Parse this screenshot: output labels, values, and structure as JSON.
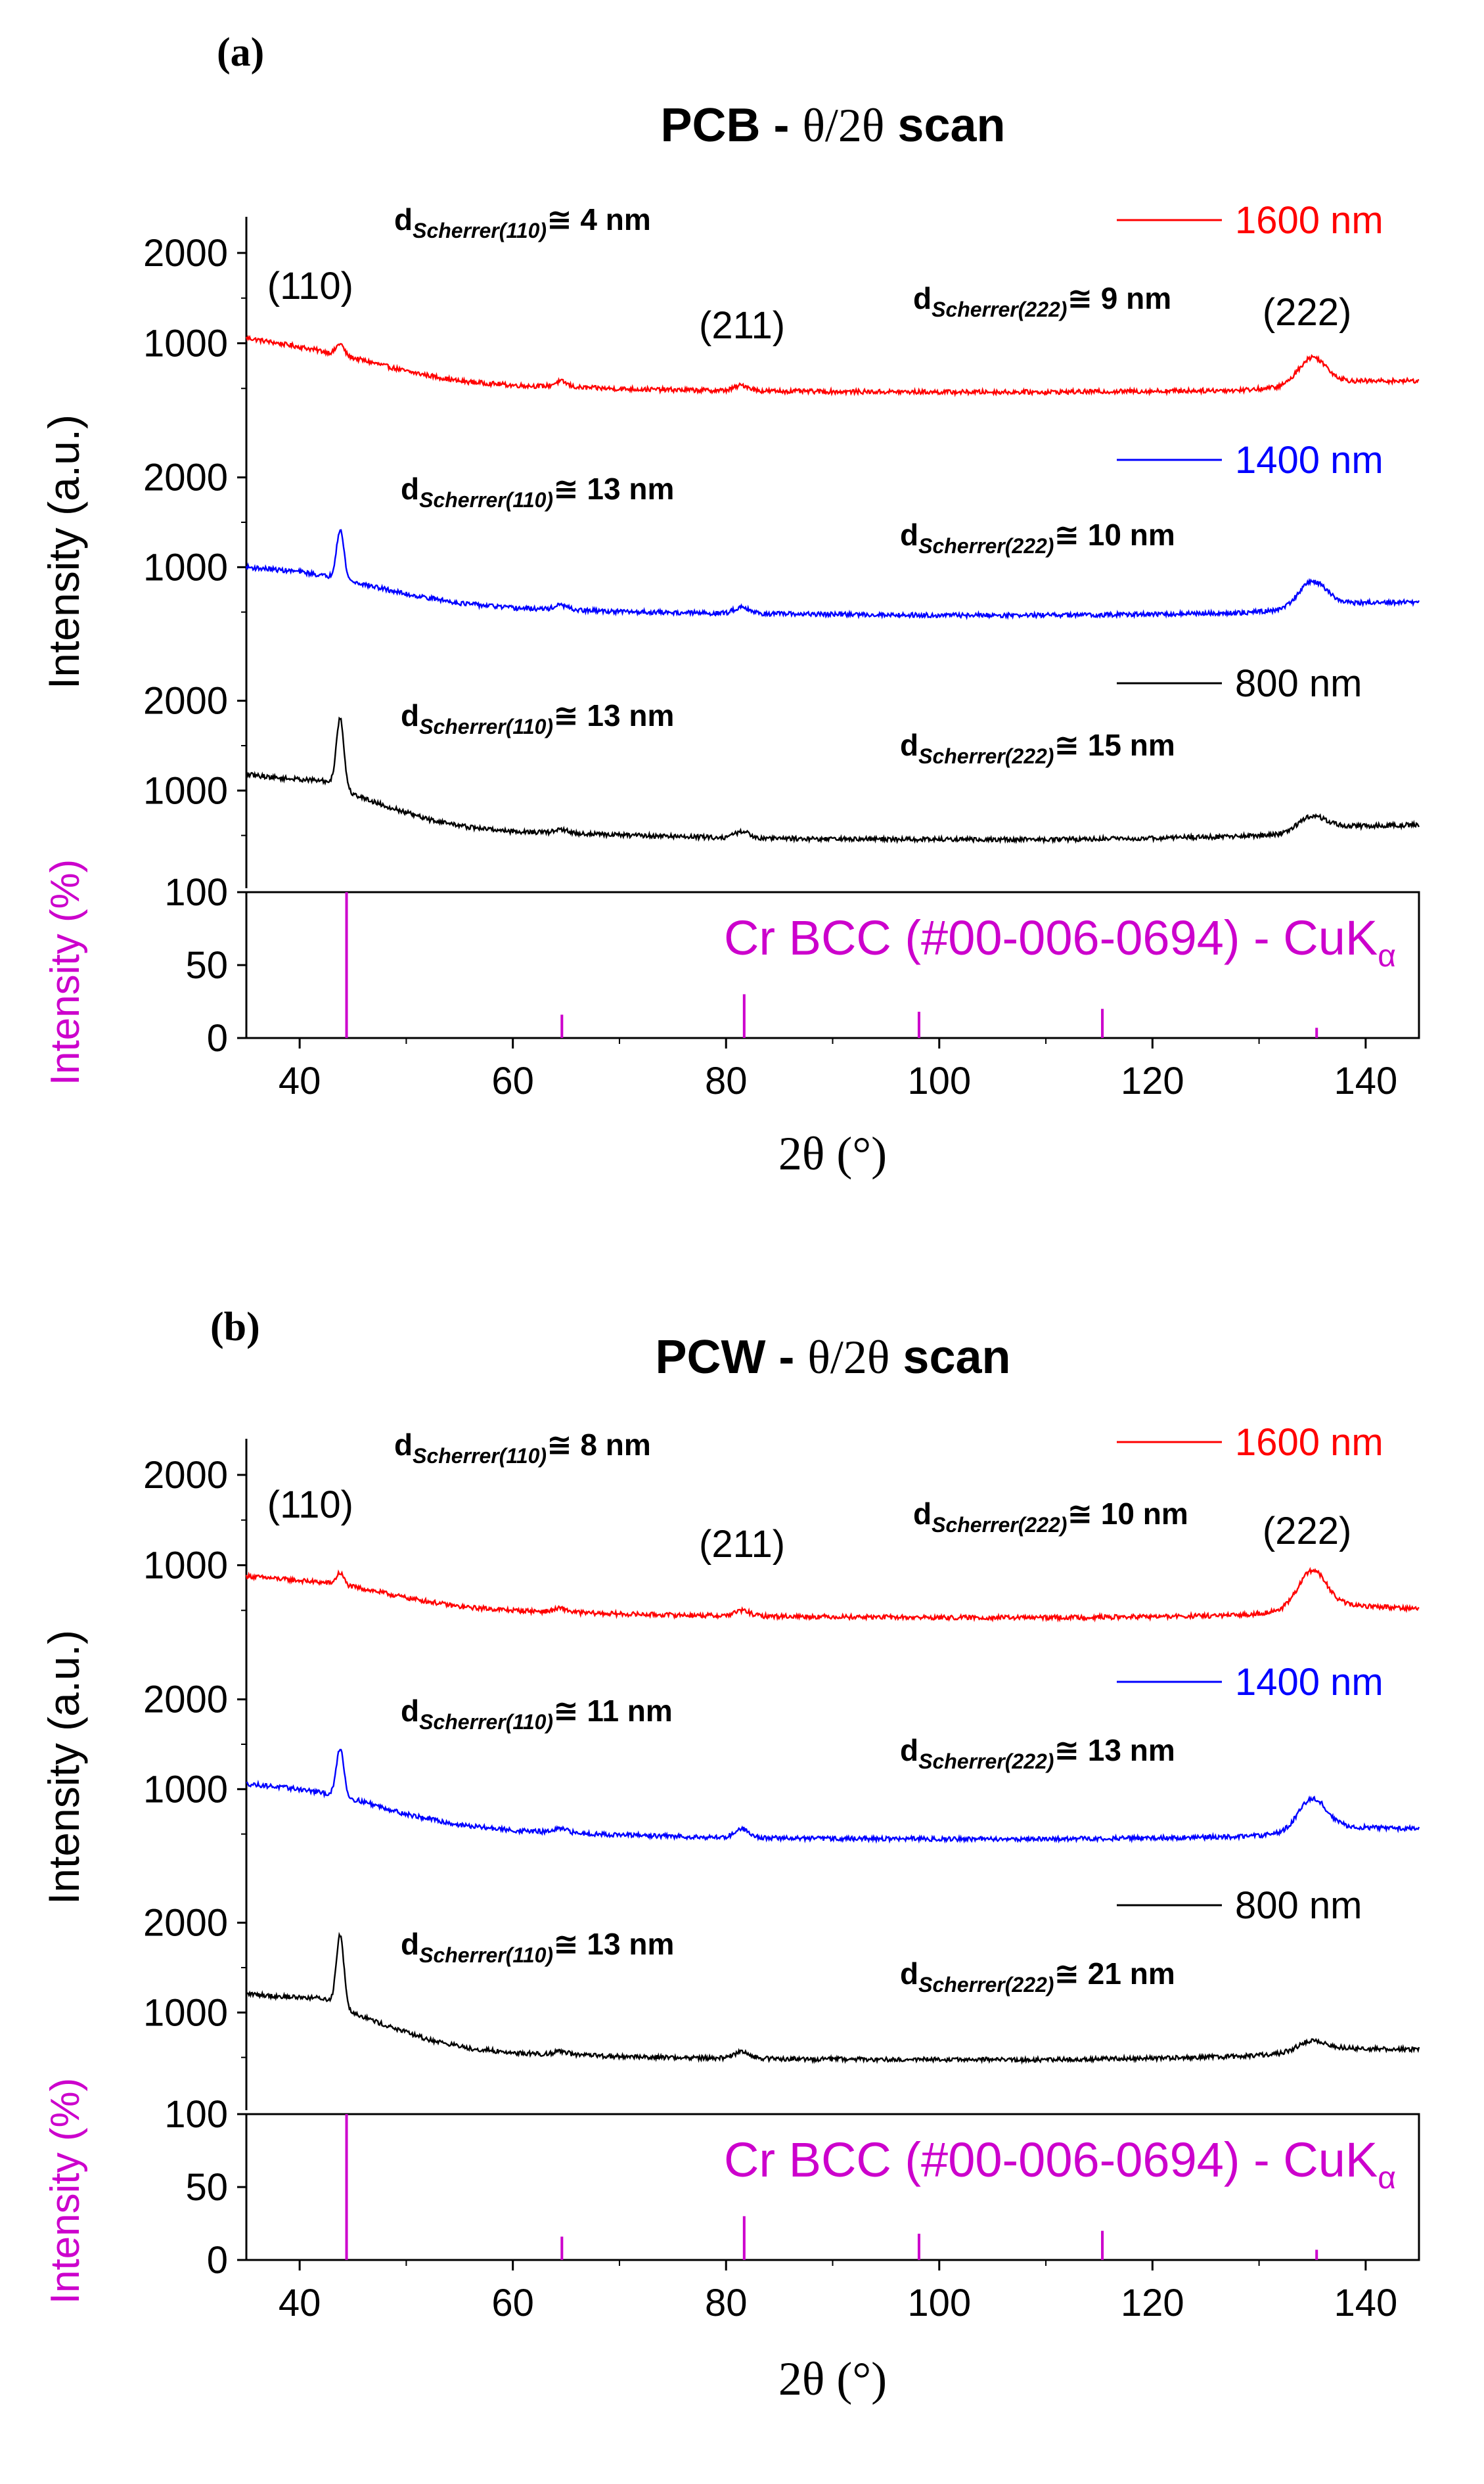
{
  "chart_data": [
    {
      "type": "line",
      "panel_label": "(a)",
      "title_prefix": "PCB - ",
      "title_suffix": " scan",
      "title_theta": "θ/2θ",
      "ylabel_main": "Intensity (a.u.)",
      "ylabel_ref": "Intensity (%)",
      "xlabel": "2θ (°)",
      "xlim": [
        35,
        145
      ],
      "xticks": [
        "40",
        "60",
        "80",
        "100",
        "120",
        "140"
      ],
      "ylim_main": [
        0,
        2400
      ],
      "yticks_main": [
        "2000",
        "1000"
      ],
      "ylim_ref": [
        0,
        100
      ],
      "yticks_ref": [
        "100",
        "50",
        "0"
      ],
      "series": [
        {
          "name": "1600 nm",
          "color": "#ff0000",
          "baseline": [
            [
              35,
              1060
            ],
            [
              40,
              960
            ],
            [
              44,
              870
            ],
            [
              50,
              690
            ],
            [
              55,
              580
            ],
            [
              60,
              535
            ],
            [
              70,
              495
            ],
            [
              80,
              475
            ],
            [
              90,
              465
            ],
            [
              100,
              460
            ],
            [
              110,
              460
            ],
            [
              120,
              470
            ],
            [
              128,
              480
            ],
            [
              132,
              510
            ],
            [
              138,
              580
            ],
            [
              145,
              585
            ]
          ],
          "peaks": [
            [
              43.8,
              120,
              0.35
            ],
            [
              64.5,
              60,
              0.6
            ],
            [
              81.5,
              60,
              0.7
            ],
            [
              135,
              300,
              1.3
            ]
          ],
          "noise": 25,
          "annotations": [
            {
              "sub": "(110)",
              "value": "4 nm"
            },
            {
              "sub": "(222)",
              "value": "9 nm"
            }
          ],
          "peak_labels": [
            "(110)",
            "(211)",
            "(222)"
          ]
        },
        {
          "name": "1400 nm",
          "color": "#0000ff",
          "baseline": [
            [
              35,
              1000
            ],
            [
              40,
              950
            ],
            [
              43,
              890
            ],
            [
              46,
              810
            ],
            [
              50,
              700
            ],
            [
              55,
              600
            ],
            [
              60,
              545
            ],
            [
              70,
              505
            ],
            [
              80,
              485
            ],
            [
              90,
              475
            ],
            [
              100,
              465
            ],
            [
              110,
              465
            ],
            [
              120,
              475
            ],
            [
              128,
              490
            ],
            [
              132,
              520
            ],
            [
              138,
              600
            ],
            [
              145,
              610
            ]
          ],
          "peaks": [
            [
              43.8,
              550,
              0.35
            ],
            [
              64.5,
              50,
              0.6
            ],
            [
              81.5,
              75,
              0.7
            ],
            [
              135,
              280,
              1.3
            ]
          ],
          "noise": 25,
          "annotations": [
            {
              "sub": "(110)",
              "value": "13 nm"
            },
            {
              "sub": "(222)",
              "value": "10 nm"
            }
          ]
        },
        {
          "name": "800 nm",
          "color": "#000000",
          "baseline": [
            [
              35,
              1180
            ],
            [
              38,
              1140
            ],
            [
              42,
              1110
            ],
            [
              43.5,
              1080
            ],
            [
              45,
              960
            ],
            [
              48,
              830
            ],
            [
              52,
              680
            ],
            [
              56,
              590
            ],
            [
              60,
              545
            ],
            [
              70,
              505
            ],
            [
              80,
              475
            ],
            [
              90,
              460
            ],
            [
              100,
              455
            ],
            [
              110,
              455
            ],
            [
              120,
              470
            ],
            [
              128,
              490
            ],
            [
              132,
              510
            ],
            [
              138,
              600
            ],
            [
              145,
              620
            ]
          ],
          "peaks": [
            [
              43.8,
              750,
              0.35
            ],
            [
              64.5,
              40,
              0.6
            ],
            [
              81.5,
              70,
              0.7
            ],
            [
              135,
              160,
              1.3
            ]
          ],
          "noise": 25,
          "annotations": [
            {
              "sub": "(110)",
              "value": "13 nm"
            },
            {
              "sub": "(222)",
              "value": "15 nm"
            }
          ]
        }
      ],
      "reference": {
        "color": "#cc00cc",
        "label": "Cr BCC (#00-006-0694) - CuK",
        "label_sub": "α",
        "lines": [
          [
            44.4,
            100
          ],
          [
            64.6,
            16
          ],
          [
            81.7,
            30
          ],
          [
            98.1,
            18
          ],
          [
            115.3,
            20
          ],
          [
            135.4,
            7
          ]
        ]
      },
      "annotation_prefix": "d",
      "annotation_sub_prefix": "Scherrer",
      "annotation_symbol": "≅"
    },
    {
      "type": "line",
      "panel_label": "(b)",
      "title_prefix": "PCW - ",
      "title_suffix": " scan",
      "title_theta": "θ/2θ",
      "ylabel_main": "Intensity (a.u.)",
      "ylabel_ref": "Intensity (%)",
      "xlabel": "2θ (°)",
      "xlim": [
        35,
        145
      ],
      "xticks": [
        "40",
        "60",
        "80",
        "100",
        "120",
        "140"
      ],
      "ylim_main": [
        0,
        2400
      ],
      "yticks_main": [
        "2000",
        "1000"
      ],
      "ylim_ref": [
        0,
        100
      ],
      "yticks_ref": [
        "100",
        "50",
        "0"
      ],
      "series": [
        {
          "name": "1600 nm",
          "color": "#ff0000",
          "baseline": [
            [
              35,
              880
            ],
            [
              40,
              830
            ],
            [
              43,
              800
            ],
            [
              46,
              740
            ],
            [
              50,
              640
            ],
            [
              55,
              540
            ],
            [
              60,
              500
            ],
            [
              70,
              460
            ],
            [
              80,
              440
            ],
            [
              90,
              430
            ],
            [
              100,
              420
            ],
            [
              110,
              420
            ],
            [
              120,
              430
            ],
            [
              128,
              445
            ],
            [
              132,
              490
            ],
            [
              138,
              560
            ],
            [
              145,
              520
            ]
          ],
          "peaks": [
            [
              43.8,
              130,
              0.35
            ],
            [
              64.5,
              40,
              0.6
            ],
            [
              81.5,
              60,
              0.7
            ],
            [
              135,
              420,
              1.3
            ]
          ],
          "noise": 25,
          "annotations": [
            {
              "sub": "(110)",
              "value": "8 nm"
            },
            {
              "sub": "(222)",
              "value": "10 nm"
            }
          ],
          "peak_labels": [
            "(110)",
            "(211)",
            "(222)"
          ]
        },
        {
          "name": "1400 nm",
          "color": "#0000ff",
          "baseline": [
            [
              35,
              1060
            ],
            [
              40,
              1000
            ],
            [
              43,
              940
            ],
            [
              46,
              860
            ],
            [
              50,
              720
            ],
            [
              55,
              600
            ],
            [
              60,
              540
            ],
            [
              70,
              490
            ],
            [
              80,
              460
            ],
            [
              90,
              450
            ],
            [
              100,
              445
            ],
            [
              110,
              445
            ],
            [
              120,
              455
            ],
            [
              128,
              470
            ],
            [
              132,
              500
            ],
            [
              138,
              580
            ],
            [
              145,
              560
            ]
          ],
          "peaks": [
            [
              43.8,
              540,
              0.35
            ],
            [
              64.5,
              40,
              0.6
            ],
            [
              81.5,
              100,
              0.7
            ],
            [
              135,
              360,
              1.3
            ]
          ],
          "noise": 25,
          "annotations": [
            {
              "sub": "(110)",
              "value": "11 nm"
            },
            {
              "sub": "(222)",
              "value": "13 nm"
            }
          ]
        },
        {
          "name": "800 nm",
          "color": "#000000",
          "baseline": [
            [
              35,
              1210
            ],
            [
              38,
              1180
            ],
            [
              42,
              1160
            ],
            [
              43.5,
              1110
            ],
            [
              45,
              1000
            ],
            [
              48,
              860
            ],
            [
              52,
              700
            ],
            [
              56,
              600
            ],
            [
              60,
              550
            ],
            [
              70,
              510
            ],
            [
              80,
              490
            ],
            [
              90,
              480
            ],
            [
              100,
              475
            ],
            [
              110,
              475
            ],
            [
              120,
              490
            ],
            [
              128,
              510
            ],
            [
              132,
              540
            ],
            [
              138,
              600
            ],
            [
              145,
              590
            ]
          ],
          "peaks": [
            [
              43.8,
              780,
              0.35
            ],
            [
              64.5,
              40,
              0.6
            ],
            [
              81.5,
              80,
              0.7
            ],
            [
              135,
              120,
              1.3
            ]
          ],
          "noise": 25,
          "annotations": [
            {
              "sub": "(110)",
              "value": "13 nm"
            },
            {
              "sub": "(222)",
              "value": "21 nm"
            }
          ]
        }
      ],
      "reference": {
        "color": "#cc00cc",
        "label": "Cr BCC (#00-006-0694) - CuK",
        "label_sub": "α",
        "lines": [
          [
            44.4,
            100
          ],
          [
            64.6,
            16
          ],
          [
            81.7,
            30
          ],
          [
            98.1,
            18
          ],
          [
            115.3,
            20
          ],
          [
            135.4,
            7
          ]
        ]
      },
      "annotation_prefix": "d",
      "annotation_sub_prefix": "Scherrer",
      "annotation_symbol": "≅"
    }
  ]
}
